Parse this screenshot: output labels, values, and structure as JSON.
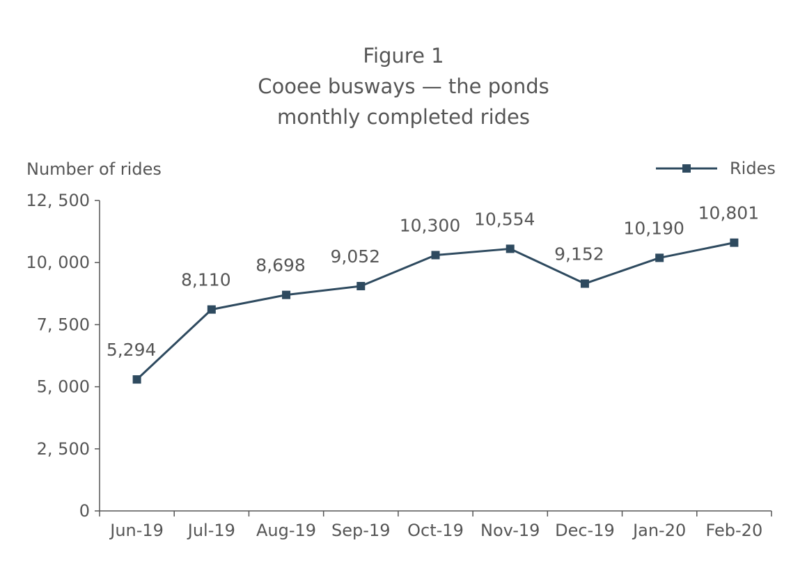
{
  "chart_data": {
    "type": "line",
    "title": "Figure 1",
    "subtitle_lines": [
      "Cooee busways — the ponds",
      "monthly completed rides"
    ],
    "ylabel": "Number of rides",
    "xlabel": "",
    "categories": [
      "Jun-19",
      "Jul-19",
      "Aug-19",
      "Sep-19",
      "Oct-19",
      "Nov-19",
      "Dec-19",
      "Jan-20",
      "Feb-20"
    ],
    "series": [
      {
        "name": "Rides",
        "values": [
          5294,
          8110,
          8698,
          9052,
          10300,
          10554,
          9152,
          10190,
          10801
        ],
        "labels": [
          "5,294",
          "8,110",
          "8,698",
          "9,052",
          "10,300",
          "10,554",
          "9,152",
          "10,190",
          "10,801"
        ],
        "color": "#2e4a5f",
        "marker": "square"
      }
    ],
    "ylim": [
      0,
      12500
    ],
    "yticks": [
      0,
      2500,
      5000,
      7500,
      10000,
      12500
    ],
    "ytick_labels": [
      "0",
      "2, 500",
      "5, 000",
      "7, 500",
      "10, 000",
      "12, 500"
    ],
    "grid": false,
    "legend_position": "top-right"
  }
}
